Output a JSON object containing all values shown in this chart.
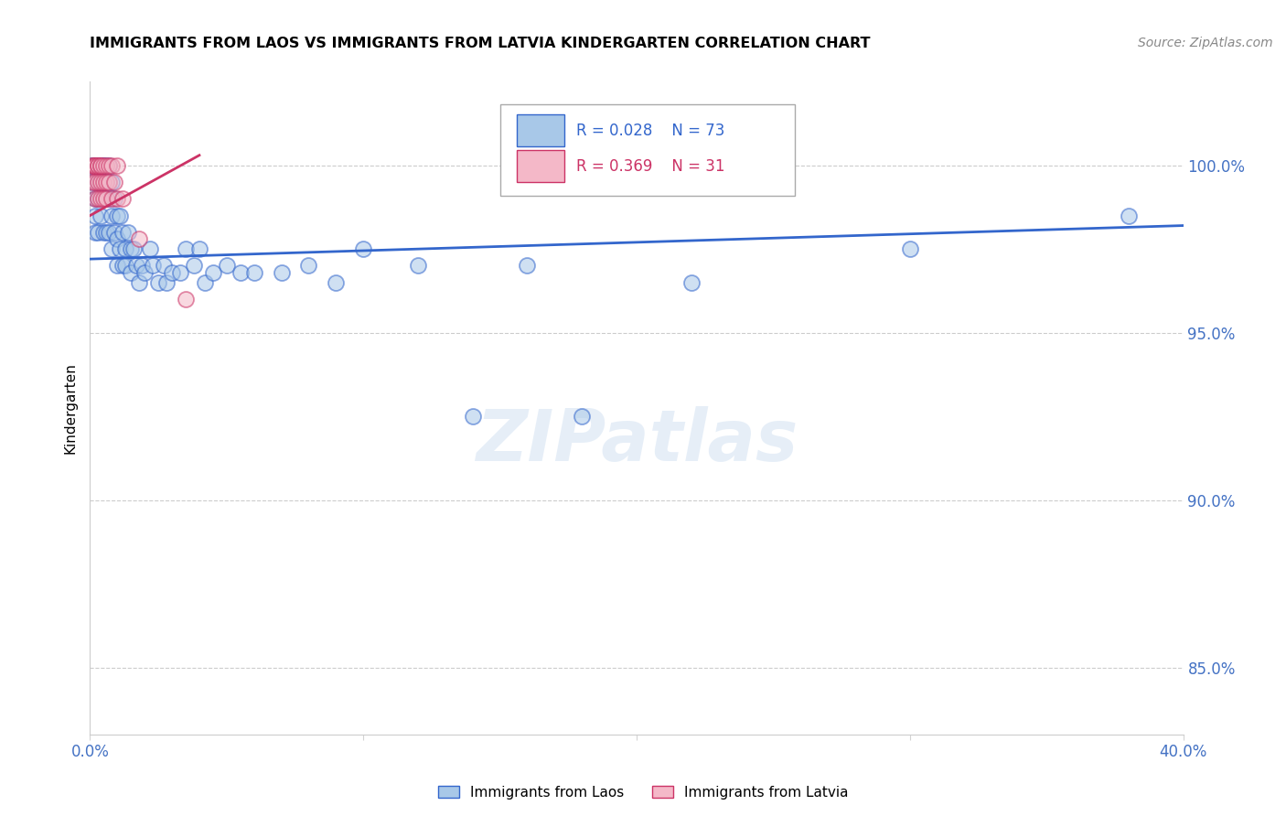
{
  "title": "IMMIGRANTS FROM LAOS VS IMMIGRANTS FROM LATVIA KINDERGARTEN CORRELATION CHART",
  "source": "Source: ZipAtlas.com",
  "ylabel": "Kindergarten",
  "yticks": [
    85.0,
    90.0,
    95.0,
    100.0
  ],
  "ytick_labels": [
    "85.0%",
    "90.0%",
    "95.0%",
    "100.0%"
  ],
  "xlim": [
    0.0,
    0.4
  ],
  "ylim": [
    83.0,
    102.5
  ],
  "legend_blue_r": "0.028",
  "legend_blue_n": "73",
  "legend_pink_r": "0.369",
  "legend_pink_n": "31",
  "color_blue": "#a8c8e8",
  "color_pink": "#f4b8c8",
  "color_blue_line": "#3366cc",
  "color_pink_line": "#cc3366",
  "color_axis_text": "#4472c4",
  "watermark_text": "ZIPatlas",
  "laos_x": [
    0.001,
    0.001,
    0.001,
    0.002,
    0.002,
    0.002,
    0.002,
    0.003,
    0.003,
    0.003,
    0.003,
    0.004,
    0.004,
    0.004,
    0.005,
    0.005,
    0.005,
    0.005,
    0.005,
    0.006,
    0.006,
    0.006,
    0.007,
    0.007,
    0.007,
    0.008,
    0.008,
    0.008,
    0.009,
    0.009,
    0.01,
    0.01,
    0.01,
    0.011,
    0.011,
    0.012,
    0.012,
    0.013,
    0.013,
    0.014,
    0.015,
    0.015,
    0.016,
    0.017,
    0.018,
    0.019,
    0.02,
    0.022,
    0.023,
    0.025,
    0.027,
    0.028,
    0.03,
    0.033,
    0.035,
    0.038,
    0.04,
    0.042,
    0.045,
    0.05,
    0.055,
    0.06,
    0.07,
    0.08,
    0.09,
    0.1,
    0.12,
    0.14,
    0.16,
    0.18,
    0.22,
    0.3,
    0.38
  ],
  "laos_y": [
    100.0,
    100.0,
    99.5,
    100.0,
    99.0,
    98.5,
    98.0,
    100.0,
    99.5,
    99.0,
    98.0,
    100.0,
    99.5,
    98.5,
    100.0,
    100.0,
    99.5,
    99.0,
    98.0,
    100.0,
    99.0,
    98.0,
    100.0,
    99.0,
    98.0,
    99.5,
    98.5,
    97.5,
    99.0,
    98.0,
    98.5,
    97.8,
    97.0,
    98.5,
    97.5,
    98.0,
    97.0,
    97.5,
    97.0,
    98.0,
    97.5,
    96.8,
    97.5,
    97.0,
    96.5,
    97.0,
    96.8,
    97.5,
    97.0,
    96.5,
    97.0,
    96.5,
    96.8,
    96.8,
    97.5,
    97.0,
    97.5,
    96.5,
    96.8,
    97.0,
    96.8,
    96.8,
    96.8,
    97.0,
    96.5,
    97.5,
    97.0,
    92.5,
    97.0,
    92.5,
    96.5,
    97.5,
    98.5
  ],
  "latvia_x": [
    0.001,
    0.001,
    0.001,
    0.002,
    0.002,
    0.002,
    0.002,
    0.003,
    0.003,
    0.003,
    0.003,
    0.004,
    0.004,
    0.004,
    0.004,
    0.005,
    0.005,
    0.005,
    0.006,
    0.006,
    0.006,
    0.007,
    0.007,
    0.008,
    0.008,
    0.009,
    0.01,
    0.01,
    0.012,
    0.018,
    0.035
  ],
  "latvia_y": [
    100.0,
    100.0,
    99.5,
    100.0,
    100.0,
    99.5,
    99.0,
    100.0,
    100.0,
    99.5,
    99.0,
    100.0,
    100.0,
    99.5,
    99.0,
    100.0,
    99.5,
    99.0,
    100.0,
    99.5,
    99.0,
    100.0,
    99.5,
    100.0,
    99.0,
    99.5,
    100.0,
    99.0,
    99.0,
    97.8,
    96.0
  ],
  "blue_trend_x": [
    0.0,
    0.4
  ],
  "blue_trend_y": [
    97.2,
    98.2
  ],
  "pink_trend_x": [
    0.0,
    0.04
  ],
  "pink_trend_y": [
    98.5,
    100.3
  ]
}
